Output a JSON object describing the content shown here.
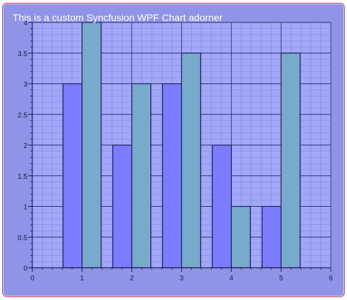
{
  "window": {
    "title": "This is a custom Syncfusion WPF Chart adorner"
  },
  "colors": {
    "background": "#8f94e6",
    "plot_area": "#a3a7f8",
    "series1": "#7c7cff",
    "series2": "#78aacc",
    "grid_major": "#2e3270",
    "grid_minor": "#7e83d6",
    "border": "#c0405a"
  },
  "chart_data": {
    "type": "bar",
    "title": "This is a custom Syncfusion WPF Chart adorner",
    "xlabel": "",
    "ylabel": "",
    "x": [
      1,
      2,
      3,
      4,
      5
    ],
    "series": [
      {
        "values": [
          3,
          2,
          3,
          2,
          1
        ]
      },
      {
        "values": [
          4,
          3,
          3.5,
          1,
          3.5
        ]
      }
    ],
    "xlim": [
      0,
      6
    ],
    "ylim": [
      0,
      4
    ],
    "xticks": [
      "0",
      "1",
      "2",
      "3",
      "4",
      "5",
      "6"
    ],
    "yticks": [
      "0",
      "0.5",
      "1",
      "1.5",
      "2",
      "2.5",
      "3",
      "3.5",
      "4"
    ],
    "grid": true,
    "legend": "none"
  }
}
